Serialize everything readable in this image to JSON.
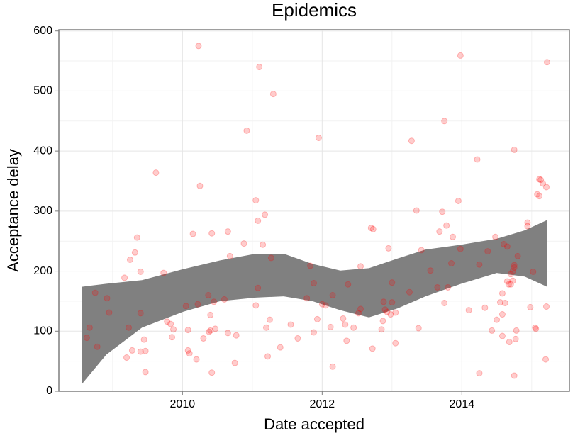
{
  "chart_data": {
    "type": "scatter",
    "title": "Epidemics",
    "x_label": "Date accepted",
    "y_label": "Acceptance delay",
    "xlim": [
      2008.23,
      2015.54
    ],
    "ylim": [
      0,
      602
    ],
    "xticks": [
      2010,
      2012,
      2014
    ],
    "yticks": [
      0,
      100,
      200,
      300,
      400,
      500,
      600
    ],
    "grid": true,
    "color": "#ff0000",
    "x": [
      2008.63,
      2008.67,
      2008.75,
      2008.78,
      2008.92,
      2008.95,
      2009.17,
      2009.2,
      2009.23,
      2009.25,
      2009.28,
      2009.32,
      2009.35,
      2009.4,
      2009.4,
      2009.4,
      2009.45,
      2009.47,
      2009.47,
      2009.73,
      2009.78,
      2009.83,
      2009.85,
      2009.87,
      2009.62,
      2010.05,
      2010.08,
      2010.08,
      2010.1,
      2010.15,
      2010.2,
      2010.22,
      2010.23,
      2010.25,
      2010.3,
      2010.37,
      2010.38,
      2010.4,
      2010.4,
      2010.42,
      2010.42,
      2010.45,
      2010.47,
      2010.6,
      2010.65,
      2010.65,
      2010.68,
      2010.75,
      2010.77,
      2010.88,
      2010.92,
      2011.05,
      2011.05,
      2011.08,
      2011.08,
      2011.1,
      2011.15,
      2011.18,
      2011.2,
      2011.22,
      2011.25,
      2011.27,
      2011.3,
      2011.4,
      2011.55,
      2011.65,
      2011.78,
      2011.83,
      2011.88,
      2011.88,
      2011.93,
      2011.95,
      2012.0,
      2012.05,
      2012.12,
      2012.15,
      2012.15,
      2012.3,
      2012.33,
      2012.35,
      2012.37,
      2012.45,
      2012.52,
      2012.55,
      2012.55,
      2012.7,
      2012.73,
      2012.72,
      2012.85,
      2012.87,
      2012.88,
      2012.9,
      2012.93,
      2012.95,
      2012.98,
      2013.0,
      2013.0,
      2013.05,
      2013.05,
      2013.25,
      2013.28,
      2013.35,
      2013.38,
      2013.42,
      2013.55,
      2013.65,
      2013.68,
      2013.72,
      2013.75,
      2013.75,
      2013.78,
      2013.8,
      2013.85,
      2013.87,
      2013.95,
      2013.98,
      2013.98,
      2014.1,
      2014.22,
      2014.25,
      2014.25,
      2014.33,
      2014.37,
      2014.43,
      2014.48,
      2014.5,
      2014.55,
      2014.58,
      2014.58,
      2014.58,
      2014.6,
      2014.62,
      2014.65,
      2014.65,
      2014.67,
      2014.68,
      2014.7,
      2014.7,
      2014.73,
      2014.73,
      2014.75,
      2014.75,
      2014.75,
      2014.77,
      2014.75,
      2014.78,
      2014.8,
      2014.94,
      2014.94,
      2014.98,
      2015.02,
      2015.05,
      2015.06,
      2015.08,
      2015.11,
      2015.13,
      2015.16,
      2015.11,
      2015.21,
      2015.21,
      2015.2,
      2015.22
    ],
    "values": [
      89,
      106,
      164,
      74,
      155,
      131,
      189,
      56,
      106,
      219,
      68,
      231,
      256,
      66,
      199,
      130,
      86,
      67,
      32,
      197,
      116,
      112,
      90,
      103,
      364,
      142,
      102,
      68,
      63,
      262,
      53,
      145,
      575,
      342,
      88,
      160,
      99,
      127,
      101,
      263,
      31,
      149,
      104,
      153,
      97,
      266,
      225,
      47,
      93,
      246,
      434,
      318,
      143,
      172,
      284,
      540,
      244,
      294,
      106,
      58,
      119,
      222,
      495,
      73,
      111,
      88,
      155,
      209,
      98,
      180,
      120,
      422,
      145,
      143,
      107,
      41,
      160,
      121,
      111,
      84,
      178,
      106,
      130,
      137,
      208,
      272,
      270,
      71,
      103,
      117,
      149,
      136,
      132,
      238,
      128,
      148,
      181,
      131,
      80,
      165,
      417,
      301,
      105,
      235,
      201,
      173,
      266,
      299,
      147,
      450,
      276,
      173,
      213,
      257,
      317,
      237,
      559,
      135,
      386,
      211,
      30,
      139,
      233,
      101,
      257,
      119,
      148,
      92,
      128,
      163,
      245,
      147,
      241,
      183,
      178,
      82,
      178,
      195,
      184,
      200,
      210,
      206,
      26,
      87,
      402,
      101,
      225,
      281,
      275,
      140,
      199,
      106,
      104,
      328,
      353,
      352,
      346,
      325,
      340,
      141,
      53,
      548
    ],
    "band": {
      "color": "#808080",
      "x": [
        2008.56,
        2008.91,
        2009.42,
        2010.0,
        2010.54,
        2011.05,
        2011.45,
        2011.86,
        2012.26,
        2012.67,
        2013.08,
        2013.48,
        2013.99,
        2014.5,
        2014.9,
        2015.22
      ],
      "upper": [
        174,
        179,
        185,
        203,
        218,
        229,
        229,
        212,
        201,
        205,
        221,
        236,
        244,
        254,
        268,
        285
      ],
      "lower": [
        12,
        61,
        106,
        132,
        150,
        156,
        158,
        150,
        135,
        123,
        138,
        158,
        179,
        197,
        191,
        174
      ]
    }
  }
}
